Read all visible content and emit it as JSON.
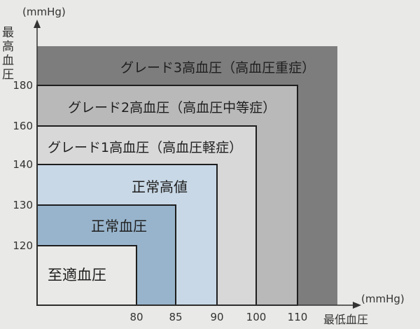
{
  "chart_data": {
    "type": "nested-region",
    "x_axis": {
      "unit": "(mmHg)",
      "label": "最低血圧",
      "ticks": [
        80,
        85,
        90,
        100,
        110
      ],
      "range": [
        66.5,
        120
      ]
    },
    "y_axis": {
      "unit": "(mmHg)",
      "label": [
        "最",
        "高",
        "血",
        "圧"
      ],
      "ticks": [
        120,
        130,
        140,
        160,
        180
      ],
      "range": [
        100,
        200
      ]
    },
    "grid": false,
    "regions": [
      {
        "label": "グレード3高血圧（高血圧重症）",
        "x_max": 120,
        "y_max": 200,
        "color": "#7d7d7d"
      },
      {
        "label": "グレード2高血圧（高血圧中等症）",
        "x_max": 110,
        "y_max": 180,
        "color": "#b9b9b9"
      },
      {
        "label": "グレード1高血圧（高血圧軽症）",
        "x_max": 100,
        "y_max": 160,
        "color": "#d8d8d8"
      },
      {
        "label": "正常高値",
        "x_max": 90,
        "y_max": 140,
        "color": "#c8d8e6"
      },
      {
        "label": "正常血圧",
        "x_max": 85,
        "y_max": 130,
        "color": "#98b4cc"
      },
      {
        "label": "至適血圧",
        "x_max": 80,
        "y_max": 120,
        "color": "#e9e9e7"
      }
    ]
  }
}
